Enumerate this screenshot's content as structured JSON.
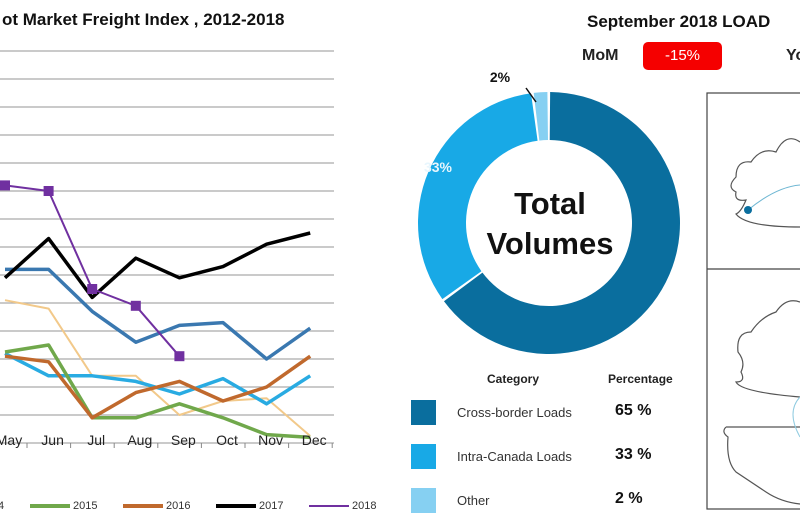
{
  "chart_data": [
    {
      "type": "line",
      "title": "ot Market Freight Index , 2012-2018",
      "categories": [
        "May",
        "Jun",
        "Jul",
        "Aug",
        "Sep",
        "Oct",
        "Nov",
        "Dec"
      ],
      "ylim": [
        0,
        14
      ],
      "grid": true,
      "legend_placement": "bottom",
      "series": [
        {
          "name": "",
          "color": "#3a78b0",
          "values": [
            6.2,
            6.2,
            4.7,
            3.6,
            4.2,
            4.3,
            3.0,
            4.1
          ]
        },
        {
          "name": "",
          "color": "#f2c98a",
          "values": [
            5.1,
            4.8,
            2.4,
            2.4,
            1.0,
            1.5,
            1.6,
            0.25
          ]
        },
        {
          "name": "4",
          "color": "#29abe2",
          "values": [
            3.2,
            2.4,
            2.4,
            2.2,
            1.75,
            2.3,
            1.4,
            2.4
          ]
        },
        {
          "name": "2015",
          "color": "#70a84b",
          "values": [
            3.25,
            3.5,
            0.9,
            0.9,
            1.4,
            0.9,
            0.3,
            0.2
          ]
        },
        {
          "name": "2016",
          "color": "#c0692d",
          "values": [
            3.1,
            2.9,
            0.9,
            1.8,
            2.2,
            1.5,
            2.0,
            3.1
          ]
        },
        {
          "name": "2017",
          "color": "#000000",
          "values": [
            5.9,
            7.3,
            5.2,
            6.6,
            5.9,
            6.3,
            7.1,
            7.5
          ]
        },
        {
          "name": "2018",
          "color": "#7030a0",
          "values": [
            9.2,
            9.0,
            5.5,
            4.9,
            3.1,
            null,
            null,
            null
          ]
        }
      ]
    },
    {
      "type": "pie",
      "title": "September 2018 LOAD",
      "center_text": [
        "Total",
        "Volumes"
      ],
      "slices": [
        {
          "label": "Cross-border Loads",
          "value": 65,
          "data_label": "65%",
          "pct_text": "65 %",
          "color": "#0a6e9e"
        },
        {
          "label": "Intra-Canada Loads",
          "value": 33,
          "data_label": "33%",
          "pct_text": "33 %",
          "color": "#18a9e6"
        },
        {
          "label": "Other",
          "value": 2,
          "data_label": "2%",
          "pct_text": "2 %",
          "color": "#86d0f2"
        }
      ],
      "table_headers": {
        "category": "Category",
        "percentage": "Percentage"
      }
    }
  ],
  "kpi": {
    "mom_label": "MoM",
    "mom_value": "-15%",
    "mom_color": "#f50000",
    "yoy_label_partial": "Yo"
  }
}
